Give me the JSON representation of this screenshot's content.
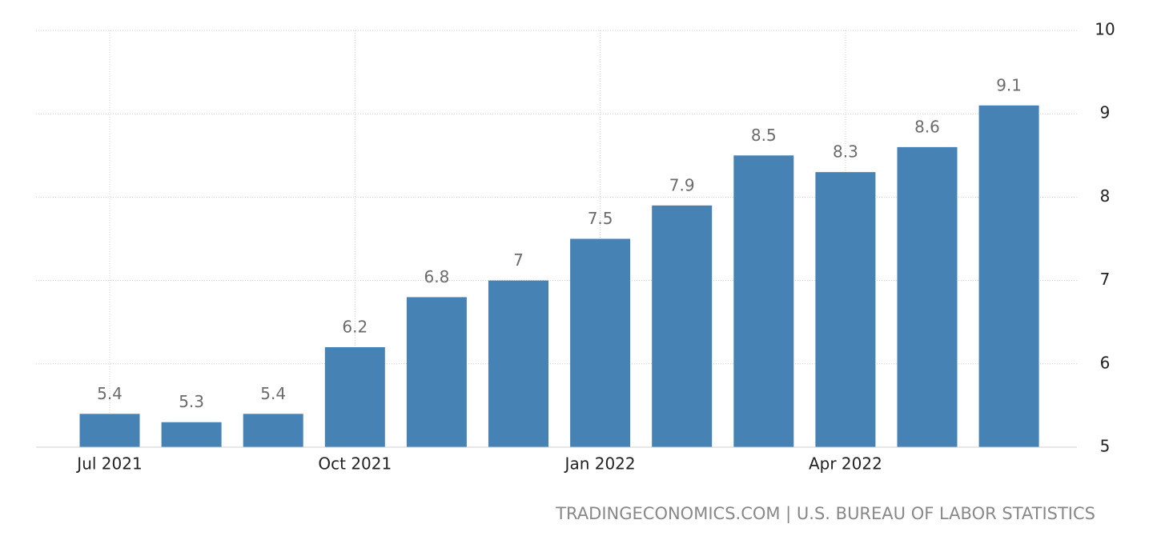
{
  "chart_data": {
    "type": "bar",
    "categories": [
      "Jul 2021",
      null,
      null,
      "Oct 2021",
      null,
      null,
      "Jan 2022",
      null,
      null,
      "Apr 2022",
      null,
      null
    ],
    "values": [
      5.4,
      5.3,
      5.4,
      6.2,
      6.8,
      7,
      7.5,
      7.9,
      8.5,
      8.3,
      8.6,
      9.1
    ],
    "color": "#4682b4",
    "ylim": [
      5,
      10
    ],
    "yticks": [
      5,
      6,
      7,
      8,
      9,
      10
    ],
    "grid": true,
    "y_axis_side": "right",
    "source": "TRADINGECONOMICS.COM | U.S. BUREAU OF LABOR STATISTICS"
  }
}
